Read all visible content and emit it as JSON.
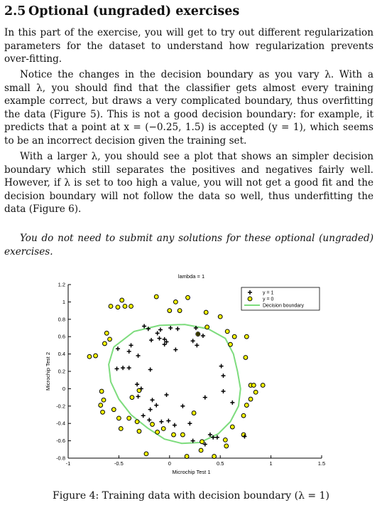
{
  "section": {
    "number": "2.5",
    "title": "Optional (ungraded) exercises"
  },
  "paragraphs": [
    "In this part of the exercise, you will get to try out different regularization parameters for the dataset to understand how regularization prevents over-fitting.",
    "Notice the changes in the decision boundary as you vary λ. With a small λ, you should find that the classifier gets almost every training example correct, but draws a very complicated boundary, thus overfitting the data (Figure 5). This is not a good decision boundary: for example, it predicts that a point at x = (−0.25, 1.5) is accepted (y = 1), which seems to be an incorrect decision given the training set.",
    "With a larger λ, you should see a plot that shows an simpler decision boundary which still separates the positives and negatives fairly well. However, if λ is set to too high a value, you will not get a good fit and the decision boundary will not follow the data so well, thus underfitting the data (Figure 6)."
  ],
  "note": "You do not need to submit any solutions for these optional (ungraded) exercises.",
  "caption": "Figure 4: Training data with decision boundary (λ = 1)",
  "colors": {
    "positive": "#000000",
    "negative_fill": "#ffff00",
    "negative_edge": "#000000",
    "boundary": "#7ddc7d",
    "ref": "#d01010"
  },
  "chart_data": {
    "type": "scatter",
    "title": "lambda = 1",
    "xlabel": "Microchip Test 1",
    "ylabel": "Microchip Test 2",
    "xlim": [
      -1,
      1.5
    ],
    "ylim": [
      -0.8,
      1.2
    ],
    "xticks": [
      "-1",
      "-0.5",
      "0",
      "0.5",
      "1",
      "1.5"
    ],
    "yticks": [
      "-0.8",
      "-0.6",
      "-0.4",
      "-0.2",
      "0",
      "0.2",
      "0.4",
      "0.6",
      "0.8",
      "1",
      "1.2"
    ],
    "legend": {
      "position": "top-right",
      "entries": [
        "y = 1",
        "y = 0",
        "Decision boundary"
      ]
    },
    "series": [
      {
        "name": "y = 1",
        "marker": "+",
        "points": [
          [
            -0.09,
            0.68
          ],
          [
            -0.21,
            0.69
          ],
          [
            -0.38,
            0.5
          ],
          [
            -0.51,
            0.46
          ],
          [
            -0.52,
            0.23
          ],
          [
            -0.4,
            0.43
          ],
          [
            -0.31,
            0.38
          ],
          [
            -0.18,
            0.56
          ],
          [
            -0.05,
            0.57
          ],
          [
            0.01,
            0.7
          ],
          [
            0.08,
            0.69
          ],
          [
            0.23,
            0.55
          ],
          [
            0.27,
            0.5
          ],
          [
            0.33,
            0.61
          ],
          [
            0.26,
            0.7
          ],
          [
            -0.05,
            0.51
          ],
          [
            -0.03,
            0.54
          ],
          [
            -0.1,
            0.58
          ],
          [
            -0.46,
            0.24
          ],
          [
            -0.4,
            0.24
          ],
          [
            -0.19,
            0.22
          ],
          [
            -0.32,
            0.05
          ],
          [
            -0.28,
            0.0
          ],
          [
            -0.31,
            -0.09
          ],
          [
            -0.17,
            -0.13
          ],
          [
            -0.03,
            -0.07
          ],
          [
            0.13,
            -0.2
          ],
          [
            0.35,
            -0.1
          ],
          [
            0.53,
            -0.03
          ],
          [
            0.62,
            -0.16
          ],
          [
            0.51,
            0.26
          ],
          [
            0.53,
            0.15
          ],
          [
            -0.19,
            -0.24
          ],
          [
            -0.13,
            -0.19
          ],
          [
            -0.08,
            -0.38
          ],
          [
            0.05,
            -0.42
          ],
          [
            0.2,
            -0.4
          ],
          [
            0.23,
            -0.6
          ],
          [
            0.43,
            -0.56
          ],
          [
            0.47,
            -0.56
          ],
          [
            0.4,
            -0.53
          ],
          [
            0.35,
            -0.64
          ],
          [
            -0.26,
            -0.31
          ],
          [
            -0.2,
            -0.36
          ],
          [
            0.74,
            -0.55
          ],
          [
            -0.01,
            -0.37
          ],
          [
            0.06,
            0.45
          ],
          [
            -0.12,
            0.64
          ],
          [
            -0.25,
            0.72
          ],
          [
            0.28,
            0.63
          ]
        ]
      },
      {
        "name": "y = 0",
        "marker": "o",
        "points": [
          [
            -0.13,
            1.06
          ],
          [
            0.18,
            1.05
          ],
          [
            0.06,
            1.0
          ],
          [
            -0.47,
            1.02
          ],
          [
            -0.38,
            0.95
          ],
          [
            -0.51,
            0.94
          ],
          [
            -0.58,
            0.95
          ],
          [
            0.0,
            0.9
          ],
          [
            0.1,
            0.9
          ],
          [
            0.36,
            0.88
          ],
          [
            0.5,
            0.83
          ],
          [
            -0.62,
            0.64
          ],
          [
            -0.59,
            0.57
          ],
          [
            -0.64,
            0.52
          ],
          [
            -0.73,
            0.38
          ],
          [
            -0.79,
            0.37
          ],
          [
            0.37,
            0.71
          ],
          [
            0.57,
            0.66
          ],
          [
            0.64,
            0.6
          ],
          [
            0.6,
            0.51
          ],
          [
            0.76,
            0.6
          ],
          [
            0.75,
            0.36
          ],
          [
            0.8,
            0.04
          ],
          [
            0.83,
            0.04
          ],
          [
            0.92,
            0.04
          ],
          [
            0.85,
            -0.04
          ],
          [
            0.8,
            -0.12
          ],
          [
            0.76,
            -0.19
          ],
          [
            0.73,
            -0.31
          ],
          [
            0.73,
            -0.53
          ],
          [
            -0.67,
            -0.03
          ],
          [
            -0.65,
            -0.13
          ],
          [
            -0.68,
            -0.19
          ],
          [
            -0.66,
            -0.27
          ],
          [
            -0.55,
            -0.24
          ],
          [
            -0.5,
            -0.34
          ],
          [
            -0.48,
            -0.46
          ],
          [
            -0.3,
            -0.49
          ],
          [
            -0.32,
            -0.38
          ],
          [
            -0.4,
            -0.34
          ],
          [
            -0.37,
            -0.1
          ],
          [
            -0.3,
            -0.02
          ],
          [
            -0.17,
            -0.41
          ],
          [
            -0.12,
            -0.5
          ],
          [
            -0.06,
            -0.46
          ],
          [
            -0.23,
            -0.75
          ],
          [
            0.13,
            -0.53
          ],
          [
            0.17,
            -0.78
          ],
          [
            0.31,
            -0.71
          ],
          [
            0.44,
            -0.78
          ],
          [
            0.56,
            -0.66
          ],
          [
            0.62,
            -0.44
          ],
          [
            0.24,
            -0.28
          ],
          [
            0.32,
            -0.61
          ],
          [
            0.28,
            0.63
          ],
          [
            -0.44,
            0.95
          ],
          [
            0.04,
            -0.53
          ],
          [
            0.55,
            -0.59
          ]
        ]
      }
    ],
    "boundary": {
      "name": "Decision boundary",
      "points": [
        [
          -0.55,
          0.48
        ],
        [
          -0.35,
          0.66
        ],
        [
          -0.1,
          0.73
        ],
        [
          0.15,
          0.74
        ],
        [
          0.38,
          0.69
        ],
        [
          0.55,
          0.58
        ],
        [
          0.63,
          0.4
        ],
        [
          0.67,
          0.2
        ],
        [
          0.7,
          0.0
        ],
        [
          0.68,
          -0.2
        ],
        [
          0.6,
          -0.38
        ],
        [
          0.48,
          -0.52
        ],
        [
          0.3,
          -0.62
        ],
        [
          0.12,
          -0.63
        ],
        [
          -0.05,
          -0.58
        ],
        [
          -0.22,
          -0.45
        ],
        [
          -0.38,
          -0.3
        ],
        [
          -0.5,
          -0.12
        ],
        [
          -0.58,
          0.08
        ],
        [
          -0.6,
          0.28
        ],
        [
          -0.55,
          0.48
        ]
      ]
    }
  }
}
